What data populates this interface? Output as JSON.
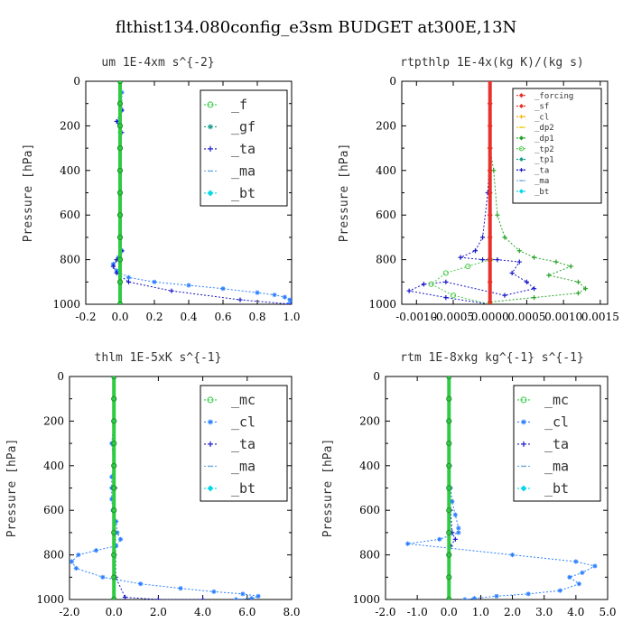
{
  "figure_title": "flthist134.080config_e3sm  BUDGET at300E,13N",
  "chart_data": [
    {
      "type": "line",
      "title": "um  1E-4xm s^{-2}",
      "ylabel": "Pressure [hPa]",
      "xlim": [
        -0.2,
        1.0
      ],
      "ylim": [
        1000,
        0
      ],
      "xticks": [
        "-0.2",
        "0.0",
        "0.2",
        "0.4",
        "0.6",
        "0.8",
        "1.0"
      ],
      "yticks": [
        "0",
        "200",
        "400",
        "600",
        "800",
        "1000"
      ],
      "legend_position": "top-right",
      "legend_font": 15,
      "series": [
        {
          "name": "_f",
          "color": "#2ecc40",
          "marker": "circle",
          "values": [
            [
              0,
              0
            ],
            [
              0,
              100
            ],
            [
              0,
              200
            ],
            [
              0,
              300
            ],
            [
              0,
              400
            ],
            [
              0,
              500
            ],
            [
              0,
              600
            ],
            [
              0,
              700
            ],
            [
              0,
              800
            ],
            [
              0,
              900
            ],
            [
              0,
              1000
            ]
          ]
        },
        {
          "name": "_gf",
          "color": "#1a9e8f",
          "marker": "star",
          "values": [
            [
              0,
              0
            ],
            [
              0,
              100
            ],
            [
              0,
              200
            ],
            [
              0,
              300
            ],
            [
              0,
              400
            ],
            [
              0,
              500
            ],
            [
              0,
              600
            ],
            [
              0,
              700
            ],
            [
              0,
              800
            ],
            [
              0,
              900
            ],
            [
              0,
              1000
            ]
          ]
        },
        {
          "name": "_ta",
          "color": "#1515c8",
          "marker": "plus",
          "values": [
            [
              0,
              0
            ],
            [
              0.01,
              130
            ],
            [
              -0.02,
              180
            ],
            [
              0.01,
              230
            ],
            [
              0,
              300
            ],
            [
              0,
              400
            ],
            [
              0,
              500
            ],
            [
              0,
              600
            ],
            [
              0,
              700
            ],
            [
              0.01,
              760
            ],
            [
              -0.02,
              800
            ],
            [
              -0.04,
              830
            ],
            [
              -0.02,
              860
            ],
            [
              0.05,
              900
            ],
            [
              0.3,
              940
            ],
            [
              0.7,
              980
            ],
            [
              1.0,
              1000
            ]
          ]
        },
        {
          "name": "_ma",
          "color": "#6fa8dc",
          "marker": "dash",
          "values": [
            [
              0,
              0
            ],
            [
              0,
              500
            ],
            [
              0,
              1000
            ]
          ]
        },
        {
          "name": "_bt",
          "color": "#00d8e8",
          "marker": "diamond",
          "values": [
            [
              0,
              0
            ],
            [
              0,
              1000
            ]
          ]
        }
      ],
      "main_curve": [
        [
          0,
          0
        ],
        [
          0.01,
          50
        ],
        [
          0.01,
          130
        ],
        [
          -0.01,
          180
        ],
        [
          0,
          230
        ],
        [
          0,
          300
        ],
        [
          0,
          400
        ],
        [
          0,
          500
        ],
        [
          0,
          600
        ],
        [
          0,
          700
        ],
        [
          0.01,
          760
        ],
        [
          -0.01,
          790
        ],
        [
          -0.04,
          820
        ],
        [
          -0.02,
          850
        ],
        [
          0.05,
          880
        ],
        [
          0.2,
          900
        ],
        [
          0.4,
          915
        ],
        [
          0.6,
          930
        ],
        [
          0.8,
          948
        ],
        [
          0.9,
          958
        ],
        [
          0.96,
          968
        ],
        [
          0.99,
          980
        ],
        [
          1.0,
          990
        ],
        [
          0.98,
          1000
        ]
      ]
    },
    {
      "type": "line",
      "title": "rtpthlp  1E-4x(kg K)/(kg s)",
      "ylabel": "Pressure [hPa]",
      "xlim": [
        -0.0012,
        0.0016
      ],
      "ylim": [
        1000,
        0
      ],
      "xticks": [
        "-0.0010",
        "-0.0005",
        "0.0000",
        "0.0005",
        "0.0010",
        "0.0015"
      ],
      "yticks": [
        "0",
        "200",
        "400",
        "600",
        "800",
        "1000"
      ],
      "legend_position": "top-right",
      "legend_font": 9,
      "series": [
        {
          "name": "_forcing",
          "color": "#e8312a",
          "marker": "diamond"
        },
        {
          "name": "_sf",
          "color": "#e8312a",
          "marker": "star"
        },
        {
          "name": "_cl",
          "color": "#f4b400",
          "marker": "plus"
        },
        {
          "name": "_dp2",
          "color": "#e8c800",
          "marker": "dash"
        },
        {
          "name": "_dp1",
          "color": "#29a329",
          "marker": "diamond"
        },
        {
          "name": "_tp2",
          "color": "#4ccc4c",
          "marker": "circle"
        },
        {
          "name": "_tp1",
          "color": "#1a9e8f",
          "marker": "star"
        },
        {
          "name": "_ta",
          "color": "#1515c8",
          "marker": "plus"
        },
        {
          "name": "_ma",
          "color": "#6fa8dc",
          "marker": "dash"
        },
        {
          "name": "_bt",
          "color": "#00d8e8",
          "marker": "diamond"
        }
      ],
      "curves": [
        {
          "color": "#29a329",
          "marker": "plus",
          "values": [
            [
              0,
              0
            ],
            [
              0,
              300
            ],
            [
              5e-05,
              400
            ],
            [
              0.0001,
              600
            ],
            [
              0.0002,
              700
            ],
            [
              0.0004,
              760
            ],
            [
              0.0006,
              790
            ],
            [
              0.0009,
              810
            ],
            [
              0.0011,
              830
            ],
            [
              0.0008,
              870
            ],
            [
              0.0012,
              900
            ],
            [
              0.0013,
              930
            ],
            [
              0.0012,
              950
            ],
            [
              0.0006,
              970
            ],
            [
              0,
              990
            ],
            [
              0,
              1000
            ]
          ]
        },
        {
          "color": "#1515c8",
          "marker": "plus",
          "values": [
            [
              0,
              0
            ],
            [
              0,
              300
            ],
            [
              -3e-05,
              500
            ],
            [
              -0.0001,
              700
            ],
            [
              -0.0002,
              760
            ],
            [
              -0.0004,
              790
            ],
            [
              -0.0001,
              800
            ],
            [
              0.0001,
              800
            ],
            [
              0.0004,
              810
            ],
            [
              0.0003,
              860
            ],
            [
              0.0005,
              900
            ],
            [
              0.0006,
              930
            ],
            [
              0.0002,
              960
            ],
            [
              -0.0006,
              900
            ],
            [
              -0.0009,
              910
            ],
            [
              -0.0011,
              940
            ],
            [
              -0.0006,
              970
            ],
            [
              0,
              1000
            ]
          ]
        },
        {
          "color": "#4ccc4c",
          "marker": "circle",
          "values": [
            [
              0,
              800
            ],
            [
              -0.0003,
              830
            ],
            [
              -0.0006,
              860
            ],
            [
              -0.0008,
              910
            ],
            [
              -0.0005,
              960
            ],
            [
              0,
              1000
            ]
          ]
        },
        {
          "color": "#e8312a",
          "marker": "diamond",
          "values": [
            [
              0,
              0
            ],
            [
              0,
              100
            ],
            [
              0,
              200
            ],
            [
              0,
              300
            ],
            [
              0,
              400
            ],
            [
              0,
              500
            ],
            [
              0,
              600
            ],
            [
              0,
              700
            ],
            [
              0,
              800
            ],
            [
              0,
              900
            ],
            [
              0,
              1000
            ]
          ]
        }
      ]
    },
    {
      "type": "line",
      "title": "thlm  1E-5xK s^{-1}",
      "ylabel": "Pressure [hPa]",
      "xlim": [
        -2.0,
        8.0
      ],
      "ylim": [
        1000,
        0
      ],
      "xticks": [
        "-2.0",
        "0.0",
        "2.0",
        "4.0",
        "6.0",
        "8.0"
      ],
      "yticks": [
        "0",
        "200",
        "400",
        "600",
        "800",
        "1000"
      ],
      "legend_position": "top-right",
      "legend_font": 15,
      "series": [
        {
          "name": "_mc",
          "color": "#2ecc40",
          "marker": "circle"
        },
        {
          "name": "_cl",
          "color": "#2a7fff",
          "marker": "star"
        },
        {
          "name": "_ta",
          "color": "#1515c8",
          "marker": "plus"
        },
        {
          "name": "_ma",
          "color": "#6fa8dc",
          "marker": "dash"
        },
        {
          "name": "_bt",
          "color": "#00d8e8",
          "marker": "diamond"
        }
      ],
      "main_curve": [
        [
          0,
          0
        ],
        [
          0,
          100
        ],
        [
          0,
          200
        ],
        [
          -0.1,
          300
        ],
        [
          0,
          400
        ],
        [
          -0.1,
          450
        ],
        [
          -0.1,
          500
        ],
        [
          -0.1,
          550
        ],
        [
          -0.05,
          600
        ],
        [
          0.1,
          650
        ],
        [
          0.15,
          700
        ],
        [
          0.3,
          730
        ],
        [
          0.1,
          760
        ],
        [
          -0.8,
          780
        ],
        [
          -1.6,
          800
        ],
        [
          -1.9,
          830
        ],
        [
          -1.7,
          860
        ],
        [
          -0.5,
          900
        ],
        [
          1.2,
          930
        ],
        [
          3.0,
          950
        ],
        [
          4.5,
          965
        ],
        [
          5.8,
          975
        ],
        [
          6.5,
          985
        ],
        [
          6.2,
          995
        ],
        [
          5.5,
          1000
        ]
      ],
      "flat_curves": [
        {
          "color": "#1515c8",
          "marker": "plus",
          "values": [
            [
              0,
              0
            ],
            [
              0.05,
              500
            ],
            [
              0.08,
              900
            ],
            [
              0.5,
              990
            ],
            [
              2.0,
              1000
            ],
            [
              4.0,
              1000
            ]
          ]
        },
        {
          "color": "#2ecc40",
          "marker": "circle",
          "values": [
            [
              0,
              0
            ],
            [
              0,
              100
            ],
            [
              0,
              200
            ],
            [
              0,
              300
            ],
            [
              0,
              400
            ],
            [
              0,
              500
            ],
            [
              0,
              600
            ],
            [
              0,
              700
            ],
            [
              0,
              800
            ],
            [
              0,
              900
            ],
            [
              0,
              1000
            ]
          ]
        }
      ]
    },
    {
      "type": "line",
      "title": "rtm  1E-8xkg kg^{-1} s^{-1}",
      "ylabel": "Pressure [hPa]",
      "xlim": [
        -2.0,
        5.0
      ],
      "ylim": [
        1000,
        0
      ],
      "xticks": [
        "-2.0",
        "-1.0",
        "0.0",
        "1.0",
        "2.0",
        "3.0",
        "4.0",
        "5.0"
      ],
      "yticks": [
        "0",
        "200",
        "400",
        "600",
        "800",
        "1000"
      ],
      "legend_position": "top-right",
      "legend_font": 15,
      "series": [
        {
          "name": "_mc",
          "color": "#2ecc40",
          "marker": "circle"
        },
        {
          "name": "_cl",
          "color": "#2a7fff",
          "marker": "star"
        },
        {
          "name": "_ta",
          "color": "#1515c8",
          "marker": "plus"
        },
        {
          "name": "_ma",
          "color": "#6fa8dc",
          "marker": "dash"
        },
        {
          "name": "_bt",
          "color": "#00d8e8",
          "marker": "diamond"
        }
      ],
      "main_curve": [
        [
          0,
          0
        ],
        [
          0,
          200
        ],
        [
          0,
          400
        ],
        [
          0.05,
          500
        ],
        [
          0.1,
          560
        ],
        [
          0.2,
          620
        ],
        [
          0.3,
          680
        ],
        [
          0.3,
          700
        ],
        [
          -0.3,
          730
        ],
        [
          -1.3,
          750
        ],
        [
          2.0,
          800
        ],
        [
          4.0,
          830
        ],
        [
          4.6,
          850
        ],
        [
          4.2,
          880
        ],
        [
          3.8,
          900
        ],
        [
          4.1,
          930
        ],
        [
          3.5,
          960
        ],
        [
          2.5,
          975
        ],
        [
          1.5,
          985
        ],
        [
          0.8,
          995
        ],
        [
          0.5,
          1000
        ]
      ],
      "flat_curves": [
        {
          "color": "#1515c8",
          "marker": "plus",
          "values": [
            [
              0,
              0
            ],
            [
              0.02,
              400
            ],
            [
              0.05,
              600
            ],
            [
              0.1,
              700
            ],
            [
              0.2,
              730
            ],
            [
              0.05,
              760
            ],
            [
              0,
              800
            ],
            [
              0,
              1000
            ]
          ]
        },
        {
          "color": "#2ecc40",
          "marker": "circle",
          "values": [
            [
              0,
              0
            ],
            [
              0,
              100
            ],
            [
              0,
              200
            ],
            [
              0,
              300
            ],
            [
              0,
              400
            ],
            [
              0,
              500
            ],
            [
              0,
              600
            ],
            [
              0,
              700
            ],
            [
              0,
              800
            ],
            [
              0,
              900
            ],
            [
              0,
              1000
            ]
          ]
        }
      ]
    }
  ]
}
